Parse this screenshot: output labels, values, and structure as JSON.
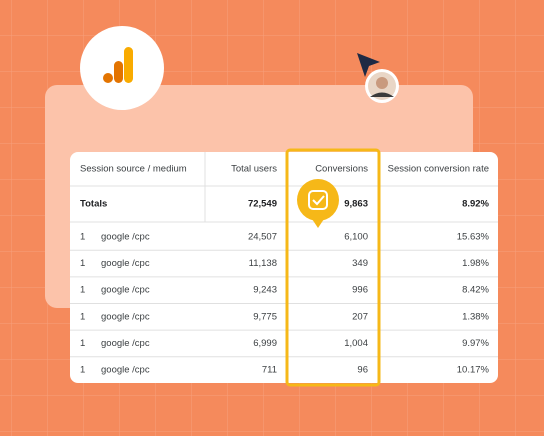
{
  "table": {
    "headers": [
      "Session source / medium",
      "Total users",
      "Conversions",
      "Session conversion rate"
    ],
    "totals": {
      "label": "Totals",
      "users": "72,549",
      "conversions": "9,863",
      "rate": "8.92%"
    },
    "rows": [
      [
        "1",
        "google /cpc",
        "24,507",
        "6,100",
        "15.63%"
      ],
      [
        "1",
        "google /cpc",
        "11,138",
        "349",
        "1.98%"
      ],
      [
        "1",
        "google /cpc",
        "9,243",
        "996",
        "8.42%"
      ],
      [
        "1",
        "google /cpc",
        "9,775",
        "207",
        "1.38%"
      ],
      [
        "1",
        "google /cpc",
        "6,999",
        "1,004",
        "9.97%"
      ],
      [
        "1",
        "google /cpc",
        "711",
        "96",
        "10.17%"
      ]
    ]
  }
}
